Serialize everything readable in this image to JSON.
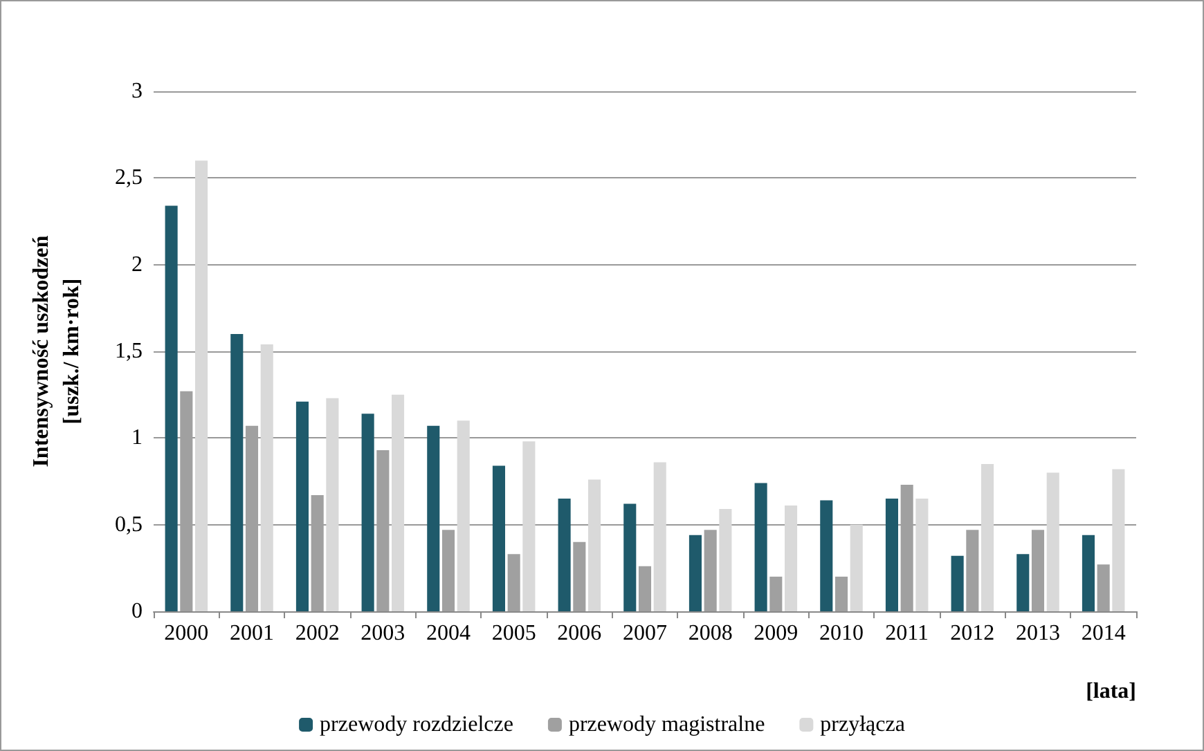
{
  "chart_data": {
    "type": "bar",
    "xlabel": "[lata]",
    "ylabel": "Intensywność uszkodzeń\n[uszk./ km·rok]",
    "categories": [
      "2000",
      "2001",
      "2002",
      "2003",
      "2004",
      "2005",
      "2006",
      "2007",
      "2008",
      "2009",
      "2010",
      "2011",
      "2012",
      "2013",
      "2014"
    ],
    "series": [
      {
        "name": "przewody rozdzielcze",
        "color": "#1f5a6b",
        "values": [
          2.34,
          1.6,
          1.21,
          1.14,
          1.07,
          0.84,
          0.65,
          0.62,
          0.44,
          0.74,
          0.64,
          0.65,
          0.32,
          0.33,
          0.44
        ]
      },
      {
        "name": "przewody magistralne",
        "color": "#a0a0a0",
        "values": [
          1.27,
          1.07,
          0.67,
          0.93,
          0.47,
          0.33,
          0.4,
          0.26,
          0.47,
          0.2,
          0.2,
          0.73,
          0.47,
          0.47,
          0.27
        ]
      },
      {
        "name": "przyłącza",
        "color": "#d9d9d9",
        "values": [
          2.6,
          1.54,
          1.23,
          1.25,
          1.1,
          0.98,
          0.76,
          0.86,
          0.59,
          0.61,
          0.5,
          0.65,
          0.85,
          0.8,
          0.82
        ]
      }
    ],
    "ylim": [
      0,
      3
    ],
    "yticks": [
      0,
      {
        "value": 0.5,
        "label": "0,5"
      },
      1,
      {
        "value": 1.5,
        "label": "1,5"
      },
      2,
      {
        "value": 2.5,
        "label": "2,5"
      },
      3
    ],
    "grid": "y",
    "legend": "bottom"
  }
}
